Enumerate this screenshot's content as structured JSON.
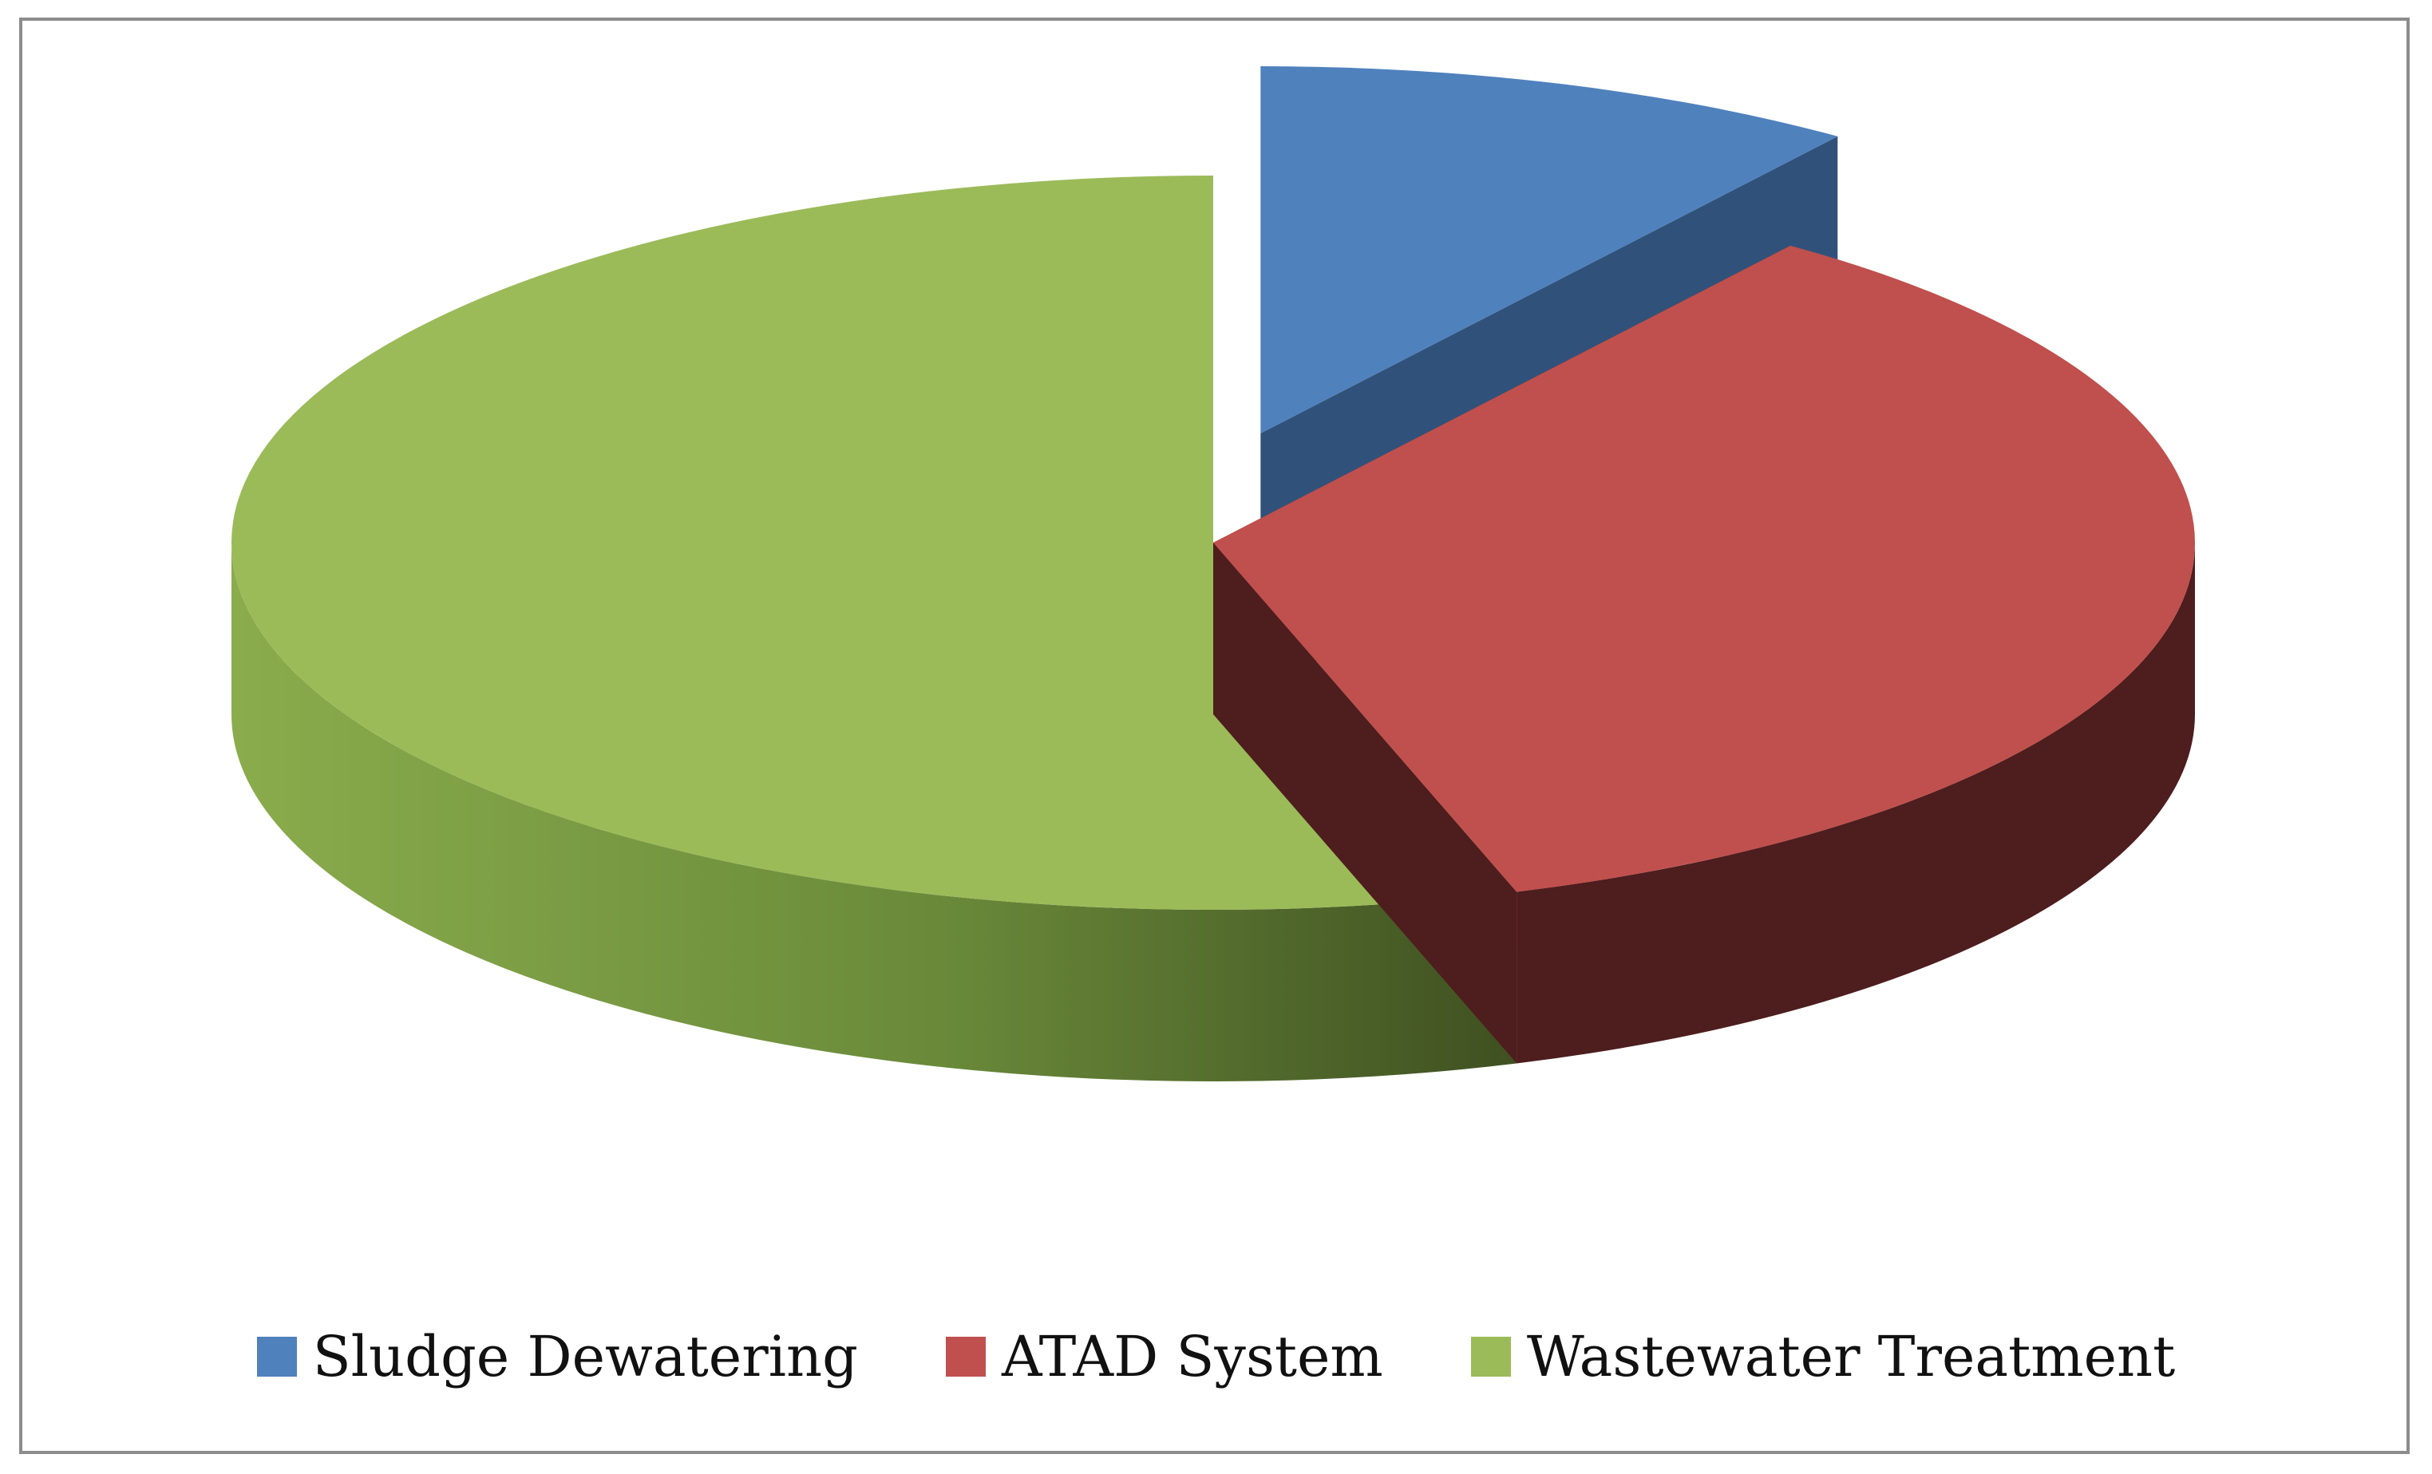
{
  "chart_data": {
    "type": "pie",
    "style": "3d-exploded",
    "title": "",
    "legend_position": "bottom",
    "slices": [
      {
        "label": "Sludge Dewatering",
        "value": 10,
        "color": "#4f81bd",
        "side_color": "#30527a",
        "exploded": true
      },
      {
        "label": "ATAD System",
        "value": 35,
        "color": "#c0504d",
        "side_color": "#4e1d1e",
        "exploded": false
      },
      {
        "label": "Wastewater Treatment",
        "value": 55,
        "color": "#9bbb59",
        "side_color": "#6c8a3b",
        "exploded": false
      }
    ]
  }
}
